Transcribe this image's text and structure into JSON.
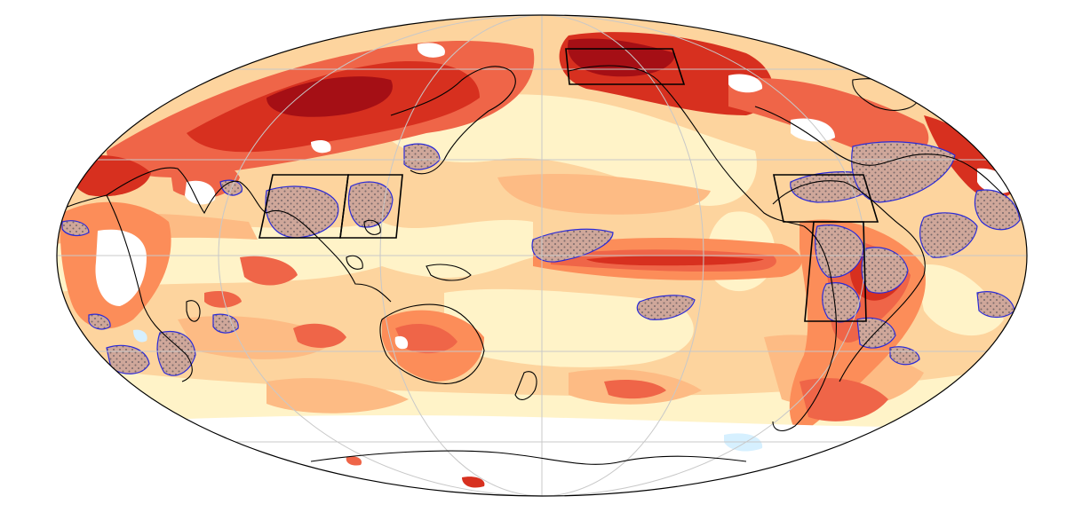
{
  "map": {
    "projection": "mollweide",
    "center_longitude": 180,
    "colors": {
      "dark_red": "#a50f15",
      "red": "#d7301f",
      "red_orange": "#ef6548",
      "orange": "#fc8d59",
      "light_orange": "#fdbb84",
      "peach": "#fdd49e",
      "cream": "#fff3c8",
      "white": "#ffffff",
      "light_blue": "#d6f0ff",
      "stipple_outline": "#2b2bd6",
      "stipple_dot": "#7a6a6a",
      "coastline": "#000000",
      "graticule": "#c8c8c8"
    },
    "boxes": [
      {
        "name": "box-south-asia"
      },
      {
        "name": "box-east-asia"
      },
      {
        "name": "box-alaska"
      },
      {
        "name": "box-central-america"
      },
      {
        "name": "box-south-america"
      }
    ]
  }
}
